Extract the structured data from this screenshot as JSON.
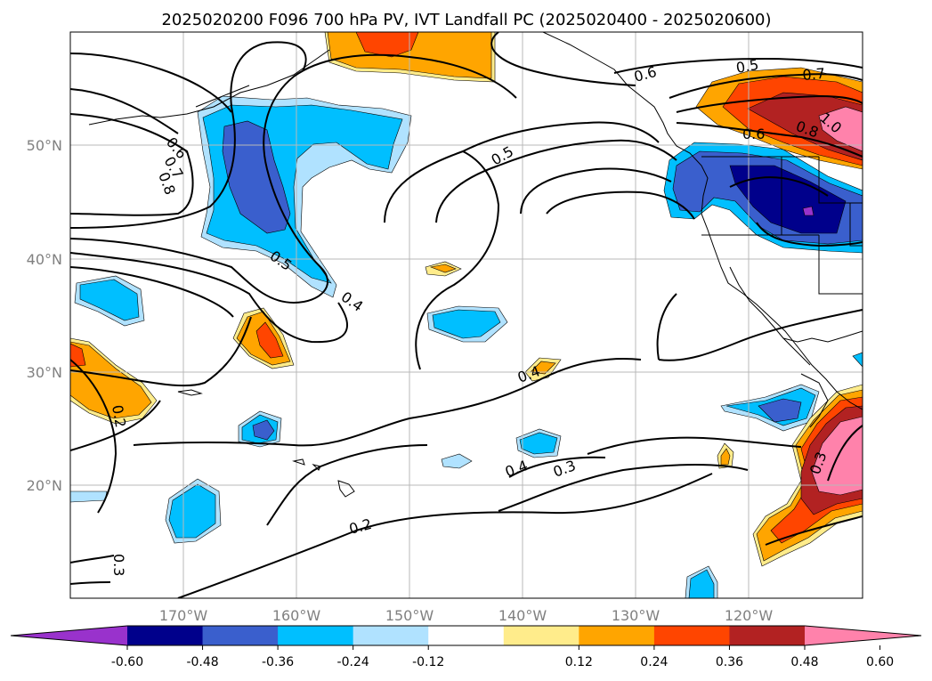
{
  "title": "2025020200 F096 700 hPa PV, IVT Landfall PC (2025020400 - 2025020600)",
  "map": {
    "lon_labels": [
      "170°W",
      "160°W",
      "150°W",
      "140°W",
      "130°W",
      "120°W"
    ],
    "lat_labels": [
      "50°N",
      "40°N",
      "30°N",
      "20°N"
    ],
    "grid": true
  },
  "contours": {
    "color": "#000000",
    "labels": [
      "0.6",
      "0.7",
      "0.8",
      "0.5",
      "0.4",
      "0.5",
      "0.6",
      "0.5",
      "0.7",
      "0.8",
      "1.0",
      "0.6",
      "0.4",
      "0.4",
      "0.3",
      "0.2",
      "0.3",
      "0.2",
      "0.3"
    ]
  },
  "colorbar": {
    "tick_labels": [
      "-0.60",
      "-0.48",
      "-0.36",
      "-0.24",
      "-0.12",
      "0.12",
      "0.24",
      "0.36",
      "0.48",
      "0.60"
    ],
    "colors": [
      "#9932cc",
      "#00008b",
      "#3a5fcd",
      "#00bfff",
      "#b0e2ff",
      "#ffffff",
      "#ffec8b",
      "#ffa500",
      "#ff4500",
      "#b22222",
      "#ff82ab"
    ],
    "extend": "both"
  }
}
